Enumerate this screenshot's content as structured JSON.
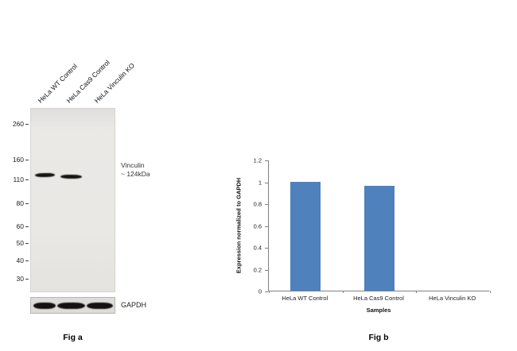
{
  "figure": {
    "fig_a_caption": "Fig a",
    "fig_b_caption": "Fig b"
  },
  "blot": {
    "lanes": [
      "HeLa WT Control",
      "HeLa Cas9 Control",
      "HeLa Vinculin KO"
    ],
    "mw_markers": [
      "260",
      "160",
      "110",
      "80",
      "60",
      "50",
      "40",
      "30"
    ],
    "target_label_line1": "Vinculin",
    "target_label_line2": "~ 124kDa",
    "loading_control_label": "GAPDH"
  },
  "chart_data": {
    "type": "bar",
    "title": "",
    "categories": [
      "HeLa WT Control",
      "HeLa Cas9 Control",
      "HeLa Vinculin KO"
    ],
    "values": [
      1.0,
      0.96,
      0
    ],
    "xlabel": "Samples",
    "ylabel": "Expression  normalized to GAPDH",
    "ylim": [
      0,
      1.2
    ],
    "yticks": [
      0,
      0.2,
      0.4,
      0.6,
      0.8,
      1,
      1.2
    ],
    "bar_color": "#4f81bd",
    "grid": false,
    "legend": false
  }
}
